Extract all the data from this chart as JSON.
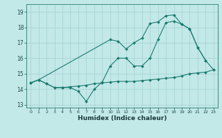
{
  "xlabel": "Humidex (Indice chaleur)",
  "bg_color": "#c2e8e8",
  "line_color": "#1a7a6e",
  "grid_color": "#a8d4d4",
  "xlim": [
    -0.5,
    23.5
  ],
  "ylim": [
    12.8,
    19.5
  ],
  "yticks": [
    13,
    14,
    15,
    16,
    17,
    18,
    19
  ],
  "xticks": [
    0,
    1,
    2,
    3,
    4,
    5,
    6,
    7,
    8,
    9,
    10,
    11,
    12,
    13,
    14,
    15,
    16,
    17,
    18,
    19,
    20,
    21,
    22,
    23
  ],
  "series": [
    {
      "x": [
        0,
        1,
        2,
        3,
        4,
        5,
        6,
        7,
        8,
        9,
        10,
        11,
        12,
        13,
        14,
        15,
        16,
        17,
        18,
        19,
        20,
        21,
        22,
        23
      ],
      "y": [
        14.4,
        14.6,
        14.35,
        14.1,
        14.1,
        14.15,
        14.2,
        14.25,
        14.35,
        14.4,
        14.45,
        14.5,
        14.5,
        14.5,
        14.55,
        14.6,
        14.65,
        14.7,
        14.75,
        14.85,
        15.0,
        15.05,
        15.1,
        15.25
      ]
    },
    {
      "x": [
        0,
        1,
        2,
        3,
        4,
        5,
        6,
        7,
        8,
        9,
        10,
        11,
        12,
        13,
        14,
        15,
        16,
        17,
        18,
        19,
        20,
        21,
        22
      ],
      "y": [
        14.4,
        14.6,
        14.35,
        14.1,
        14.1,
        14.1,
        13.85,
        13.2,
        14.0,
        14.45,
        15.5,
        16.0,
        16.0,
        15.5,
        15.5,
        16.0,
        17.2,
        18.3,
        18.4,
        18.2,
        17.9,
        16.7,
        15.85
      ]
    },
    {
      "x": [
        0,
        1,
        10,
        11,
        12,
        13,
        14,
        15,
        16,
        17,
        18,
        19,
        20,
        21,
        22,
        23
      ],
      "y": [
        14.4,
        14.6,
        17.2,
        17.1,
        16.6,
        17.0,
        17.3,
        18.25,
        18.35,
        18.75,
        18.8,
        18.2,
        17.9,
        16.7,
        15.85,
        15.25
      ]
    }
  ]
}
